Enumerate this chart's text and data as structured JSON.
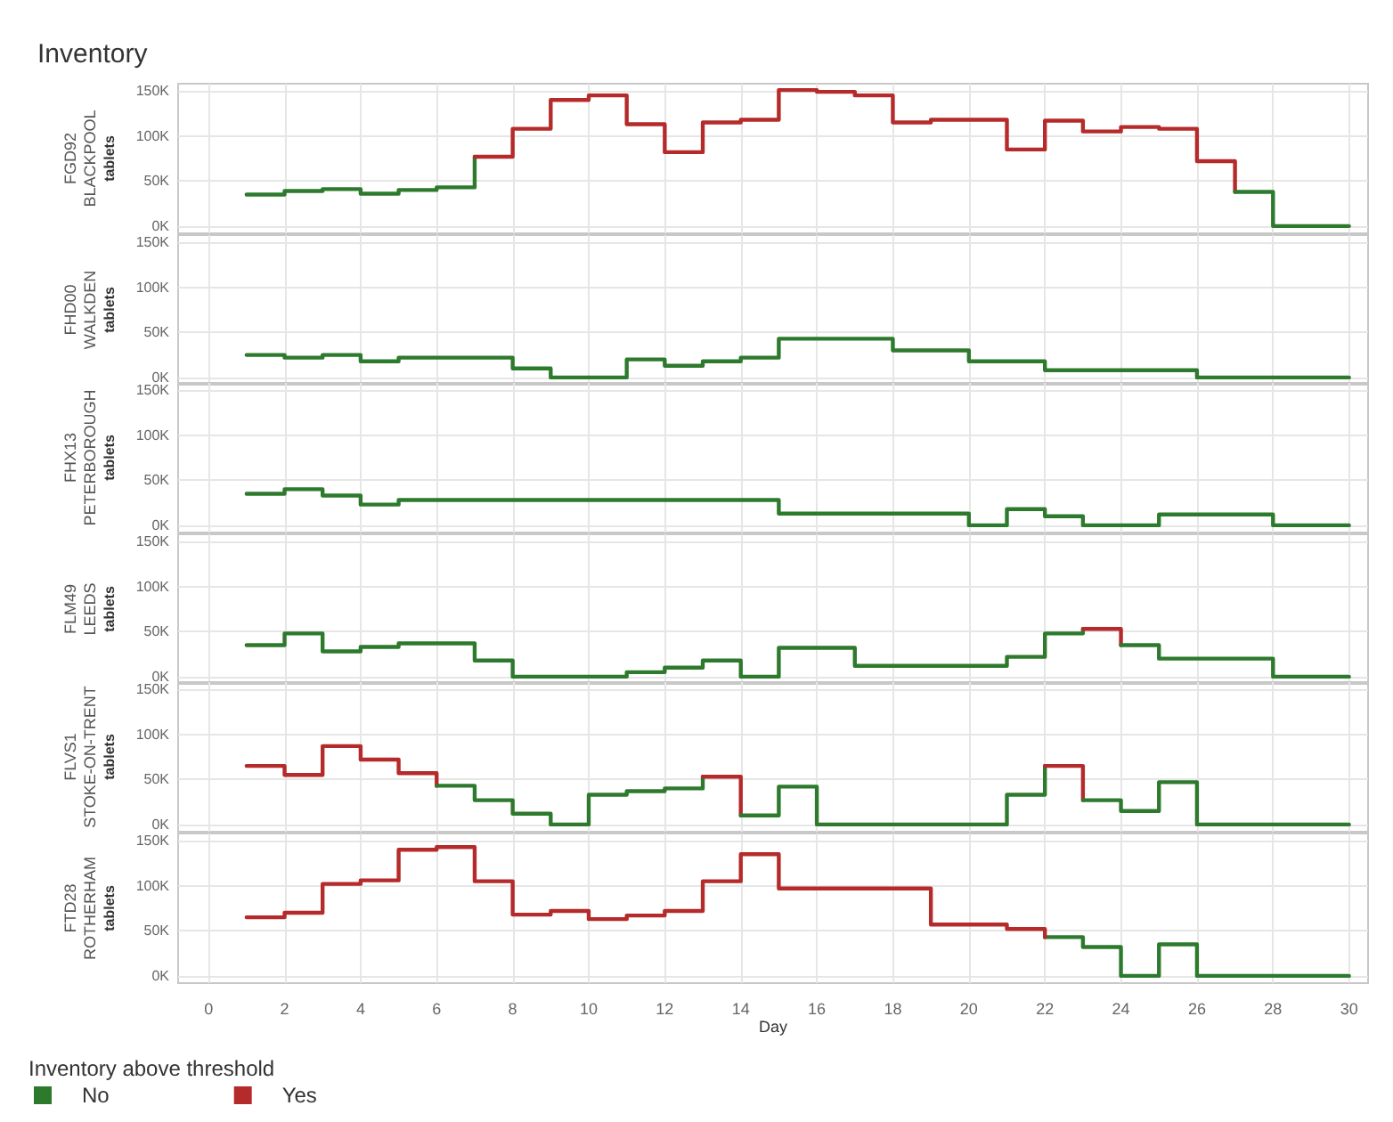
{
  "chart_data": [
    {
      "type": "step",
      "title": "Inventory",
      "subtitle": "FGD92\nBLACKPOOL",
      "ylabel": "tablets",
      "xlim": [
        -0.8,
        30.5
      ],
      "xticks": [
        0,
        2,
        4,
        6,
        8,
        10,
        12,
        14,
        16,
        18,
        20,
        22,
        24,
        26,
        28,
        30
      ],
      "ylim": [
        -8,
        158
      ],
      "yticks": [
        {
          "value": 0,
          "label": "0K"
        },
        {
          "value": 50,
          "label": "50K"
        },
        {
          "value": 100,
          "label": "100K"
        },
        {
          "value": 150,
          "label": "150K"
        }
      ],
      "grid": true,
      "legend": false,
      "tick_labels": "y",
      "marker": "none",
      "line_style": "solid",
      "series": [
        {
          "color": "#2d7a2d",
          "x": [
            1,
            2,
            3,
            4,
            5,
            6,
            7
          ],
          "values": [
            35,
            39,
            41,
            36,
            40,
            43,
            77
          ]
        },
        {
          "color": "#b52a2a",
          "x": [
            7,
            8,
            9,
            10,
            11,
            12,
            13,
            14,
            15,
            16,
            17,
            18,
            19,
            20,
            21,
            22,
            23,
            24,
            25,
            26,
            27
          ],
          "values": [
            77,
            108,
            140,
            145,
            113,
            82,
            115,
            118,
            151,
            149,
            145,
            115,
            118,
            118,
            85,
            117,
            105,
            110,
            108,
            72,
            38
          ]
        },
        {
          "color": "#2d7a2d",
          "x": [
            27,
            28,
            29,
            30
          ],
          "values": [
            38,
            0,
            0,
            0
          ]
        }
      ]
    },
    {
      "type": "step",
      "subtitle": "FHD00\nWALKDEN",
      "ylabel": "tablets",
      "x": [
        1,
        2,
        3,
        4,
        5,
        6,
        7,
        8,
        9,
        10,
        11,
        12,
        13,
        14,
        15,
        16,
        17,
        18,
        19,
        20,
        21,
        22,
        23,
        24,
        25,
        26,
        27,
        28,
        29,
        30
      ],
      "xlim": [
        -0.8,
        30.5
      ],
      "xticks": [
        0,
        2,
        4,
        6,
        8,
        10,
        12,
        14,
        16,
        18,
        20,
        22,
        24,
        26,
        28,
        30
      ],
      "ylim": [
        -8,
        158
      ],
      "yticks": [
        {
          "value": 0,
          "label": "0K"
        },
        {
          "value": 50,
          "label": "50K"
        },
        {
          "value": 100,
          "label": "100K"
        },
        {
          "value": 150,
          "label": "150K"
        }
      ],
      "grid": true,
      "legend": false,
      "tick_labels": "y",
      "marker": "none",
      "line_style": "solid",
      "series": [
        {
          "color": "#2d7a2d",
          "values": [
            25,
            22,
            25,
            18,
            22,
            22,
            22,
            10,
            0,
            0,
            20,
            13,
            18,
            22,
            43,
            43,
            43,
            30,
            30,
            18,
            18,
            8,
            8,
            8,
            8,
            0,
            0,
            0,
            0,
            0
          ]
        }
      ]
    },
    {
      "type": "step",
      "subtitle": "FHX13\nPETERBOROUGH",
      "ylabel": "tablets",
      "x": [
        1,
        2,
        3,
        4,
        5,
        6,
        7,
        8,
        9,
        10,
        11,
        12,
        13,
        14,
        15,
        16,
        17,
        18,
        19,
        20,
        21,
        22,
        23,
        24,
        25,
        26,
        27,
        28,
        29,
        30
      ],
      "xlim": [
        -0.8,
        30.5
      ],
      "xticks": [
        0,
        2,
        4,
        6,
        8,
        10,
        12,
        14,
        16,
        18,
        20,
        22,
        24,
        26,
        28,
        30
      ],
      "ylim": [
        -8,
        158
      ],
      "yticks": [
        {
          "value": 0,
          "label": "0K"
        },
        {
          "value": 50,
          "label": "50K"
        },
        {
          "value": 100,
          "label": "100K"
        },
        {
          "value": 150,
          "label": "150K"
        }
      ],
      "grid": true,
      "legend": false,
      "tick_labels": "y",
      "marker": "none",
      "line_style": "solid",
      "series": [
        {
          "color": "#2d7a2d",
          "values": [
            35,
            40,
            33,
            23,
            28,
            28,
            28,
            28,
            28,
            28,
            28,
            28,
            28,
            28,
            13,
            13,
            13,
            13,
            13,
            0,
            18,
            10,
            0,
            0,
            12,
            12,
            12,
            0,
            0,
            0
          ]
        }
      ]
    },
    {
      "type": "step",
      "subtitle": "FLM49\nLEEDS",
      "ylabel": "tablets",
      "xlim": [
        -0.8,
        30.5
      ],
      "xticks": [
        0,
        2,
        4,
        6,
        8,
        10,
        12,
        14,
        16,
        18,
        20,
        22,
        24,
        26,
        28,
        30
      ],
      "ylim": [
        -8,
        158
      ],
      "yticks": [
        {
          "value": 0,
          "label": "0K"
        },
        {
          "value": 50,
          "label": "50K"
        },
        {
          "value": 100,
          "label": "100K"
        },
        {
          "value": 150,
          "label": "150K"
        }
      ],
      "grid": true,
      "legend": false,
      "tick_labels": "y",
      "marker": "none",
      "line_style": "solid",
      "series": [
        {
          "color": "#2d7a2d",
          "x": [
            1,
            2,
            3,
            4,
            5,
            6,
            7,
            8,
            9,
            10,
            11,
            12,
            13,
            14,
            15,
            16,
            17,
            18,
            19,
            20,
            21,
            22,
            23
          ],
          "values": [
            35,
            48,
            28,
            33,
            37,
            37,
            18,
            0,
            0,
            0,
            5,
            10,
            18,
            0,
            32,
            32,
            12,
            12,
            12,
            12,
            22,
            48,
            53
          ]
        },
        {
          "color": "#b52a2a",
          "x": [
            23,
            24
          ],
          "values": [
            53,
            35
          ]
        },
        {
          "color": "#2d7a2d",
          "x": [
            24,
            25,
            26,
            27,
            28,
            29,
            30
          ],
          "values": [
            35,
            20,
            20,
            20,
            0,
            0,
            0
          ]
        }
      ]
    },
    {
      "type": "step",
      "subtitle": "FLVS1\nSTOKE-ON-TRENT",
      "ylabel": "tablets",
      "xlim": [
        -0.8,
        30.5
      ],
      "xticks": [
        0,
        2,
        4,
        6,
        8,
        10,
        12,
        14,
        16,
        18,
        20,
        22,
        24,
        26,
        28,
        30
      ],
      "ylim": [
        -8,
        158
      ],
      "yticks": [
        {
          "value": 0,
          "label": "0K"
        },
        {
          "value": 50,
          "label": "50K"
        },
        {
          "value": 100,
          "label": "100K"
        },
        {
          "value": 150,
          "label": "150K"
        }
      ],
      "grid": true,
      "legend": false,
      "tick_labels": "y",
      "marker": "none",
      "line_style": "solid",
      "series": [
        {
          "color": "#b52a2a",
          "x": [
            1,
            2,
            3,
            4,
            5,
            6
          ],
          "values": [
            65,
            55,
            87,
            72,
            57,
            43
          ]
        },
        {
          "color": "#2d7a2d",
          "x": [
            6,
            7,
            8,
            9,
            10,
            11,
            12,
            13
          ],
          "values": [
            43,
            27,
            12,
            0,
            33,
            37,
            40,
            53
          ]
        },
        {
          "color": "#b52a2a",
          "x": [
            13,
            14
          ],
          "values": [
            53,
            10
          ]
        },
        {
          "color": "#2d7a2d",
          "x": [
            14,
            15,
            16,
            17,
            18,
            19,
            20,
            21,
            22
          ],
          "values": [
            10,
            42,
            0,
            0,
            0,
            0,
            0,
            33,
            65
          ]
        },
        {
          "color": "#b52a2a",
          "x": [
            22,
            23
          ],
          "values": [
            65,
            27
          ]
        },
        {
          "color": "#2d7a2d",
          "x": [
            23,
            24,
            25,
            26,
            27,
            28,
            29,
            30
          ],
          "values": [
            27,
            15,
            47,
            0,
            0,
            0,
            0,
            0
          ]
        }
      ]
    },
    {
      "type": "step",
      "subtitle": "FTD28\nROTHERHAM",
      "ylabel": "tablets",
      "xlabel": "Day",
      "legend_title": "Inventory above threshold",
      "xlim": [
        -0.8,
        30.5
      ],
      "xticks": [
        0,
        2,
        4,
        6,
        8,
        10,
        12,
        14,
        16,
        18,
        20,
        22,
        24,
        26,
        28,
        30
      ],
      "ylim": [
        -8,
        158
      ],
      "yticks": [
        {
          "value": 0,
          "label": "0K"
        },
        {
          "value": 50,
          "label": "50K"
        },
        {
          "value": 100,
          "label": "100K"
        },
        {
          "value": 150,
          "label": "150K"
        }
      ],
      "grid": true,
      "legend": "bottom left",
      "marker": "none",
      "line_style": "solid",
      "series": [
        {
          "name": "No",
          "color": "#2d7a2d",
          "x": [
            22,
            23,
            24,
            25,
            26,
            27,
            28,
            29,
            30
          ],
          "values": [
            43,
            32,
            0,
            35,
            0,
            0,
            0,
            0,
            0
          ]
        },
        {
          "name": "Yes",
          "color": "#b52a2a",
          "x": [
            1,
            2,
            3,
            4,
            5,
            6,
            7,
            8,
            9,
            10,
            11,
            12,
            13,
            14,
            15,
            16,
            17,
            18,
            19,
            20,
            21,
            22
          ],
          "values": [
            65,
            70,
            102,
            106,
            140,
            143,
            105,
            68,
            72,
            63,
            67,
            72,
            105,
            135,
            97,
            97,
            97,
            97,
            57,
            57,
            52,
            43
          ]
        }
      ]
    }
  ]
}
